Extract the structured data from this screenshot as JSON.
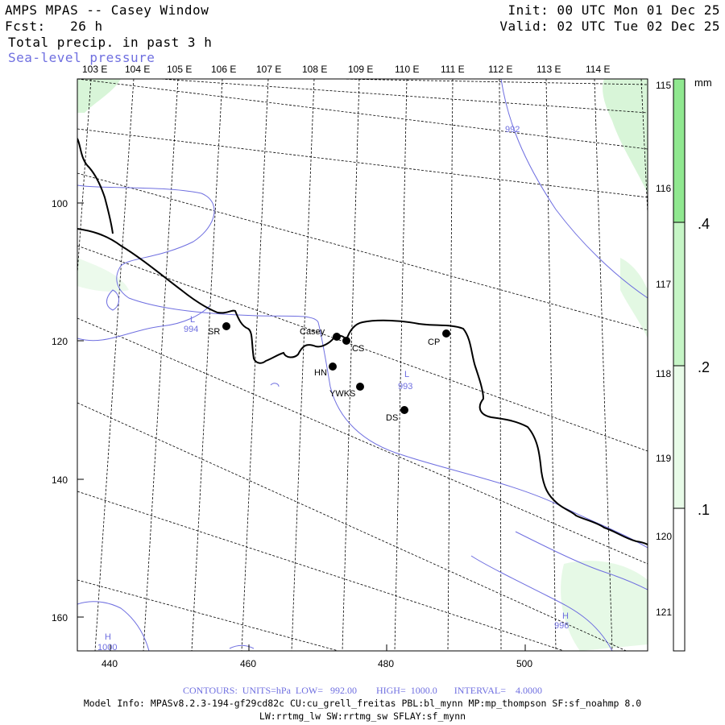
{
  "header": {
    "title": "AMPS MPAS -- Casey Window",
    "fcst": "Fcst:   26 h",
    "field1": "Total precip. in past 3 h",
    "field2": "Sea-level pressure",
    "init": "Init: 00 UTC Mon 01 Dec 25",
    "valid": "Valid: 02 UTC Tue 02 Dec 25"
  },
  "map": {
    "top_lon_labels": [
      "103 E",
      "104 E",
      "105 E",
      "106 E",
      "107 E",
      "108 E",
      "109 E",
      "110 E",
      "111 E",
      "112 E",
      "113 E",
      "114 E"
    ],
    "right_lon_labels": [
      "115 E",
      "116 E",
      "117 E",
      "118 E",
      "119 E",
      "120 E",
      "121 E"
    ],
    "y_ticks": [
      "100",
      "120",
      "140",
      "160"
    ],
    "x_ticks": [
      "440",
      "460",
      "480",
      "500"
    ],
    "stations": [
      {
        "id": "Casey",
        "label": "Casey"
      },
      {
        "id": "CS",
        "label": "CS"
      },
      {
        "id": "SR",
        "label": "SR"
      },
      {
        "id": "CP",
        "label": "CP"
      },
      {
        "id": "HN",
        "label": "HN"
      },
      {
        "id": "YWKS",
        "label": "YWKS"
      },
      {
        "id": "DS",
        "label": "DS"
      }
    ],
    "pressure_labels": [
      "992",
      "994",
      "993",
      "996",
      "1000",
      "L",
      "L",
      "H",
      "H"
    ],
    "contour_color": "#6f6fe0",
    "precip_color": "#90e890"
  },
  "colorbar": {
    "unit": "mm",
    "labels": [
      ".4",
      ".2",
      ".1"
    ],
    "colors": [
      "#90e890",
      "#c6f5c6",
      "#e8fbe8"
    ]
  },
  "footer": {
    "contours": "CONTOURS:  UNITS=hPa  LOW=   992.00        HIGH=  1000.0       INTERVAL=    4.0000",
    "model_info": "Model Info: MPASv8.2.3-194-gf29cd82c CU:cu_grell_freitas PBL:bl_mynn MP:mp_thompson SF:sf_noahmp 8.0",
    "model_info2": "LW:rrtmg_lw SW:rrtmg_sw SFLAY:sf_mynn"
  }
}
